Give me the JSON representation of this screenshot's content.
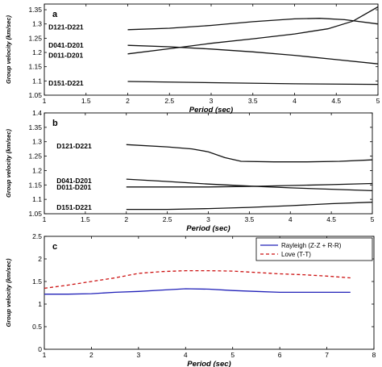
{
  "chart_data": [
    {
      "type": "line",
      "panel_label": "a",
      "xlabel": "Period (sec)",
      "ylabel": "Group velocity (km/sec)",
      "xlim": [
        1,
        5
      ],
      "ylim": [
        1.05,
        1.37
      ],
      "xticks": [
        1,
        1.5,
        2,
        2.5,
        3,
        3.5,
        4,
        4.5,
        5
      ],
      "xtick_labels": [
        "1",
        "1.5",
        "2",
        "2.5",
        "3",
        "3.5",
        "4",
        "4.5",
        "5"
      ],
      "yticks": [
        1.05,
        1.1,
        1.15,
        1.2,
        1.25,
        1.3,
        1.35
      ],
      "ytick_labels": [
        "1.05",
        "1.1",
        "1.15",
        "1.2",
        "1.25",
        "1.3",
        "1.35"
      ],
      "series": [
        {
          "name": "D121-D221",
          "color": "#111111",
          "dash": "",
          "x": [
            2,
            2.5,
            3,
            3.5,
            4,
            4.3,
            4.6,
            5
          ],
          "y": [
            1.28,
            1.285,
            1.295,
            1.308,
            1.318,
            1.32,
            1.315,
            1.3
          ],
          "label_at": [
            1.05,
            1.29
          ]
        },
        {
          "name": "D041-D201",
          "color": "#111111",
          "dash": "",
          "x": [
            2,
            2.5,
            3,
            3.5,
            4,
            4.4,
            4.7,
            5
          ],
          "y": [
            1.195,
            1.213,
            1.232,
            1.248,
            1.265,
            1.283,
            1.31,
            1.36
          ],
          "label_at": [
            1.05,
            1.225
          ]
        },
        {
          "name": "D011-D201",
          "color": "#111111",
          "dash": "",
          "x": [
            2,
            2.5,
            3,
            3.5,
            4,
            4.5,
            5
          ],
          "y": [
            1.225,
            1.22,
            1.212,
            1.202,
            1.19,
            1.175,
            1.16
          ],
          "label_at": [
            1.05,
            1.19
          ]
        },
        {
          "name": "D151-D221",
          "color": "#111111",
          "dash": "",
          "x": [
            2,
            3,
            4,
            5
          ],
          "y": [
            1.098,
            1.094,
            1.09,
            1.088
          ],
          "label_at": [
            1.05,
            1.092
          ]
        }
      ]
    },
    {
      "type": "line",
      "panel_label": "b",
      "xlabel": "Period (sec)",
      "ylabel": "Group velocity (km/sec)",
      "xlim": [
        1,
        5
      ],
      "ylim": [
        1.05,
        1.4
      ],
      "xticks": [
        1,
        1.5,
        2,
        2.5,
        3,
        3.5,
        4,
        4.5,
        5
      ],
      "xtick_labels": [
        "1",
        "1.5",
        "2",
        "2.5",
        "3",
        "3.5",
        "4",
        "4.5",
        "5"
      ],
      "yticks": [
        1.05,
        1.1,
        1.15,
        1.2,
        1.25,
        1.3,
        1.35,
        1.4
      ],
      "ytick_labels": [
        "1.05",
        "1.1",
        "1.15",
        "1.2",
        "1.25",
        "1.3",
        "1.35",
        "1.4"
      ],
      "series": [
        {
          "name": "D121-D221",
          "color": "#111111",
          "dash": "",
          "x": [
            2,
            2.5,
            2.8,
            3,
            3.2,
            3.4,
            3.8,
            4.2,
            4.6,
            5
          ],
          "y": [
            1.29,
            1.282,
            1.275,
            1.265,
            1.245,
            1.232,
            1.23,
            1.23,
            1.232,
            1.237
          ],
          "label_at": [
            1.15,
            1.285
          ]
        },
        {
          "name": "D041-D201",
          "color": "#111111",
          "dash": "",
          "x": [
            2,
            2.5,
            3,
            3.5,
            4,
            4.5,
            5
          ],
          "y": [
            1.17,
            1.162,
            1.153,
            1.146,
            1.14,
            1.135,
            1.13
          ],
          "label_at": [
            1.15,
            1.165
          ]
        },
        {
          "name": "D011-D201",
          "color": "#111111",
          "dash": "",
          "x": [
            2,
            2.5,
            3,
            3.5,
            4,
            4.5,
            5
          ],
          "y": [
            1.143,
            1.143,
            1.143,
            1.145,
            1.148,
            1.151,
            1.155
          ],
          "label_at": [
            1.15,
            1.142
          ]
        },
        {
          "name": "D151-D221",
          "color": "#111111",
          "dash": "",
          "x": [
            2,
            2.5,
            3,
            3.5,
            4,
            4.5,
            5
          ],
          "y": [
            1.065,
            1.065,
            1.068,
            1.072,
            1.078,
            1.085,
            1.09
          ],
          "label_at": [
            1.15,
            1.072
          ]
        }
      ]
    },
    {
      "type": "line",
      "panel_label": "c",
      "xlabel": "Period (sec)",
      "ylabel": "Group velocity (km/sec)",
      "xlim": [
        1,
        8
      ],
      "ylim": [
        0,
        2.5
      ],
      "xticks": [
        1,
        2,
        3,
        4,
        5,
        6,
        7,
        8
      ],
      "xtick_labels": [
        "1",
        "2",
        "3",
        "4",
        "5",
        "6",
        "7",
        "8"
      ],
      "yticks": [
        0,
        0.5,
        1,
        1.5,
        2,
        2.5
      ],
      "ytick_labels": [
        "0",
        "0.5",
        "1",
        "1.5",
        "2",
        "2.5"
      ],
      "legend_position": "top-right",
      "series": [
        {
          "name": "Rayleigh (Z-Z + R-R)",
          "color": "#2020b8",
          "dash": "",
          "x": [
            1,
            1.5,
            2,
            2.5,
            3,
            3.5,
            4,
            4.5,
            5,
            5.5,
            6,
            6.5,
            7,
            7.5
          ],
          "y": [
            1.22,
            1.22,
            1.23,
            1.26,
            1.28,
            1.31,
            1.34,
            1.33,
            1.3,
            1.28,
            1.26,
            1.26,
            1.26,
            1.26
          ]
        },
        {
          "name": "Love (T-T)",
          "color": "#cc1111",
          "dash": "4,3",
          "x": [
            1,
            1.5,
            2,
            2.5,
            3,
            3.5,
            4,
            4.5,
            5,
            5.5,
            6,
            6.5,
            7,
            7.5
          ],
          "y": [
            1.35,
            1.42,
            1.5,
            1.58,
            1.68,
            1.72,
            1.74,
            1.74,
            1.73,
            1.7,
            1.67,
            1.65,
            1.62,
            1.58
          ]
        }
      ]
    }
  ]
}
